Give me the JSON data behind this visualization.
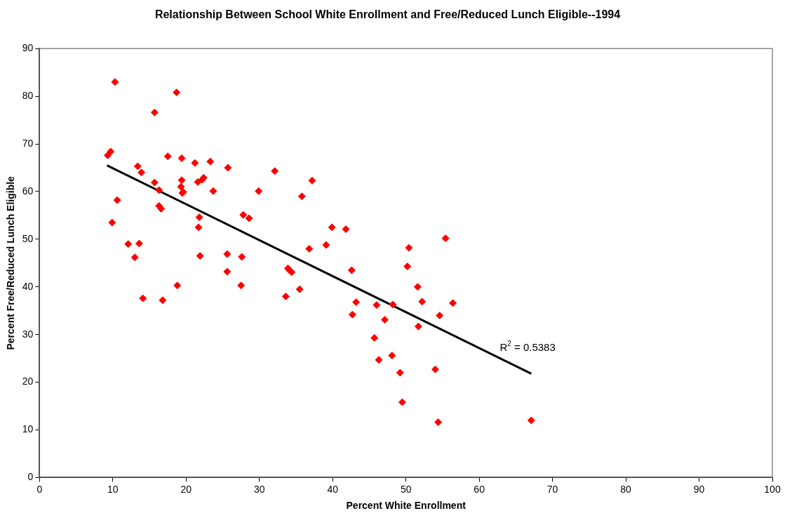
{
  "chart_data": {
    "type": "scatter",
    "title": "Relationship Between School White Enrollment and Free/Reduced Lunch Eligible--1994",
    "xlabel": "Percent White Enrollment",
    "ylabel": "Percent Free/Reduced Lunch Eligible",
    "xlim": [
      0,
      100
    ],
    "xticks": [
      0,
      10,
      20,
      30,
      40,
      50,
      60,
      70,
      80,
      90,
      100
    ],
    "ylim": [
      0,
      90
    ],
    "yticks": [
      0,
      10,
      20,
      30,
      40,
      50,
      60,
      70,
      80,
      90
    ],
    "grid": false,
    "legend": false,
    "marker": "diamond",
    "series": [
      {
        "color": "#ff0000",
        "x": [
          9.3,
          9.7,
          10.3,
          9.9,
          10.6,
          12.1,
          13.0,
          13.4,
          13.6,
          13.9,
          14.1,
          15.7,
          15.7,
          16.3,
          16.3,
          16.6,
          16.8,
          17.5,
          18.7,
          18.8,
          19.4,
          19.4,
          19.3,
          19.6,
          19.5,
          21.2,
          21.6,
          21.7,
          21.8,
          21.9,
          22.2,
          22.4,
          23.3,
          23.7,
          25.7,
          25.6,
          25.6,
          27.6,
          27.5,
          27.8,
          28.6,
          29.9,
          32.1,
          33.6,
          33.9,
          34.1,
          34.4,
          35.5,
          35.8,
          36.8,
          37.2,
          39.1,
          39.9,
          41.8,
          42.6,
          42.7,
          43.2,
          45.7,
          46.0,
          46.3,
          47.1,
          48.1,
          48.2,
          49.2,
          49.5,
          50.2,
          50.4,
          51.6,
          51.7,
          52.2,
          54.0,
          54.4,
          54.6,
          55.4,
          56.4,
          67.1
        ],
        "values": [
          67.6,
          68.4,
          83,
          53.5,
          58.2,
          49,
          46.2,
          65.3,
          49.1,
          64,
          37.6,
          76.6,
          61.9,
          60.3,
          57,
          56.4,
          37.2,
          67.4,
          80.8,
          40.3,
          67,
          62.4,
          61,
          59.9,
          59.7,
          66,
          62,
          52.5,
          54.6,
          46.5,
          62.5,
          62.9,
          66.3,
          60.1,
          65,
          46.9,
          43.2,
          46.3,
          40.3,
          55.1,
          54.4,
          60.1,
          64.3,
          38,
          43.9,
          43.5,
          43.1,
          39.5,
          59,
          48,
          62.3,
          48.8,
          52.5,
          52.1,
          43.5,
          34.2,
          36.8,
          29.3,
          36.2,
          24.7,
          33.1,
          25.6,
          36.3,
          22,
          15.8,
          44.3,
          48.2,
          40,
          31.7,
          36.9,
          22.7,
          11.6,
          34,
          50.2,
          36.6,
          12
        ]
      },
      {
        "type": "line",
        "color": "#000000",
        "marker": "none",
        "line_style": "solid",
        "x": [
          9.2,
          67.1
        ],
        "values": [
          65.5,
          21.8
        ]
      }
    ],
    "annotations": [
      "R$^{2}$ = 0.5383"
    ]
  }
}
